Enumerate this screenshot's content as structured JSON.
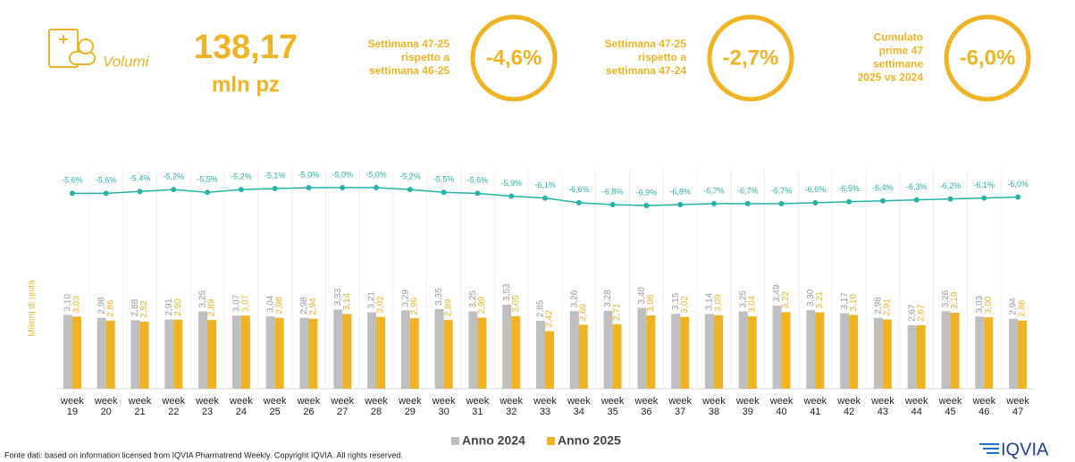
{
  "header": {
    "label": "Volumi",
    "value": "138,17",
    "unit": "mln pz"
  },
  "kpis": [
    {
      "label_lines": [
        "Settimana 47-25",
        "rispetto a",
        "settimana 46-25"
      ],
      "value": "-4,6%"
    },
    {
      "label_lines": [
        "Settimana 47-25",
        "rispetto a",
        "settimana 47-24"
      ],
      "value": "-2,7%"
    },
    {
      "label_lines": [
        "Cumulato",
        "prime 47",
        "settimane",
        "2025 vs 2024"
      ],
      "value": "-6,0%"
    }
  ],
  "chart_data": {
    "type": "bar",
    "y_label": "Milioni di unità",
    "categories": [
      "week 19",
      "week 20",
      "week 21",
      "week 22",
      "week 23",
      "week 24",
      "week 25",
      "week 26",
      "week 27",
      "week 28",
      "week 29",
      "week 30",
      "week 31",
      "week 32",
      "week 33",
      "week 34",
      "week 35",
      "week 36",
      "week 37",
      "week 38",
      "week 39",
      "week 40",
      "week 41",
      "week 42",
      "week 43",
      "week 44",
      "week 45",
      "week 46",
      "week 47"
    ],
    "series": [
      {
        "name": "Anno 2024",
        "color": "#bfbfbf",
        "values": [
          3.1,
          2.98,
          2.88,
          2.91,
          3.25,
          3.07,
          3.04,
          2.98,
          3.33,
          3.21,
          3.29,
          3.35,
          3.25,
          3.53,
          2.85,
          3.26,
          3.28,
          3.4,
          3.15,
          3.14,
          3.25,
          3.49,
          3.3,
          3.17,
          2.98,
          2.67,
          3.26,
          3.03,
          2.94
        ],
        "value_labels": [
          "3,10",
          "2,98",
          "2,88",
          "2,91",
          "3,25",
          "3,07",
          "3,04",
          "2,98",
          "3,33",
          "3,21",
          "3,29",
          "3,35",
          "3,25",
          "3,53",
          "2,85",
          "3,26",
          "3,28",
          "3,40",
          "3,15",
          "3,14",
          "3,25",
          "3,49",
          "3,30",
          "3,17",
          "2,98",
          "2,67",
          "3,26",
          "3,03",
          "2,94"
        ]
      },
      {
        "name": "Anno 2025",
        "color": "#f0b323",
        "values": [
          3.03,
          2.86,
          2.82,
          2.9,
          2.89,
          3.07,
          2.98,
          2.94,
          3.14,
          3.02,
          2.96,
          2.89,
          2.99,
          3.05,
          2.42,
          2.69,
          2.71,
          3.08,
          3.02,
          3.09,
          3.04,
          3.22,
          3.21,
          3.1,
          2.91,
          2.67,
          3.19,
          3.0,
          2.86
        ],
        "value_labels": [
          "3,03",
          "2,86",
          "2,82",
          "2,90",
          "2,89",
          "3,07",
          "2,98",
          "2,94",
          "3,14",
          "3,02",
          "2,96",
          "2,89",
          "2,99",
          "3,05",
          "2,42",
          "2,69",
          "2,71",
          "3,08",
          "3,02",
          "3,09",
          "3,04",
          "3,22",
          "3,21",
          "3,10",
          "2,91",
          "2,67",
          "3,19",
          "3,00",
          "2,86"
        ]
      }
    ],
    "line": {
      "color": "#26b3a5",
      "values": [
        -5.6,
        -5.6,
        -5.4,
        -5.2,
        -5.5,
        -5.2,
        -5.1,
        -5.0,
        -5.0,
        -5.0,
        -5.2,
        -5.5,
        -5.6,
        -5.9,
        -6.1,
        -6.6,
        -6.8,
        -6.9,
        -6.8,
        -6.7,
        -6.7,
        -6.7,
        -6.6,
        -6.5,
        -6.4,
        -6.3,
        -6.2,
        -6.1,
        -6.0
      ],
      "value_labels": [
        "-5,6%",
        "-5,6%",
        "-5,4%",
        "-5,2%",
        "-5,5%",
        "-5,2%",
        "-5,1%",
        "-5,0%",
        "-5,0%",
        "-5,0%",
        "-5,2%",
        "-5,5%",
        "-5,6%",
        "-5,9%",
        "-6,1%",
        "-6,6%",
        "-6,8%",
        "-6,9%",
        "-6,8%",
        "-6,7%",
        "-6,7%",
        "-6,7%",
        "-6,6%",
        "-6,5%",
        "-6,4%",
        "-6,3%",
        "-6,2%",
        "-6,1%",
        "-6,0%"
      ]
    }
  },
  "footer": {
    "source": "Fonte dati: based on information licensed from IQVIA Pharmatrend Weekly. Copyright IQVIA. All rights reserved.",
    "logo": "IQVIA"
  }
}
